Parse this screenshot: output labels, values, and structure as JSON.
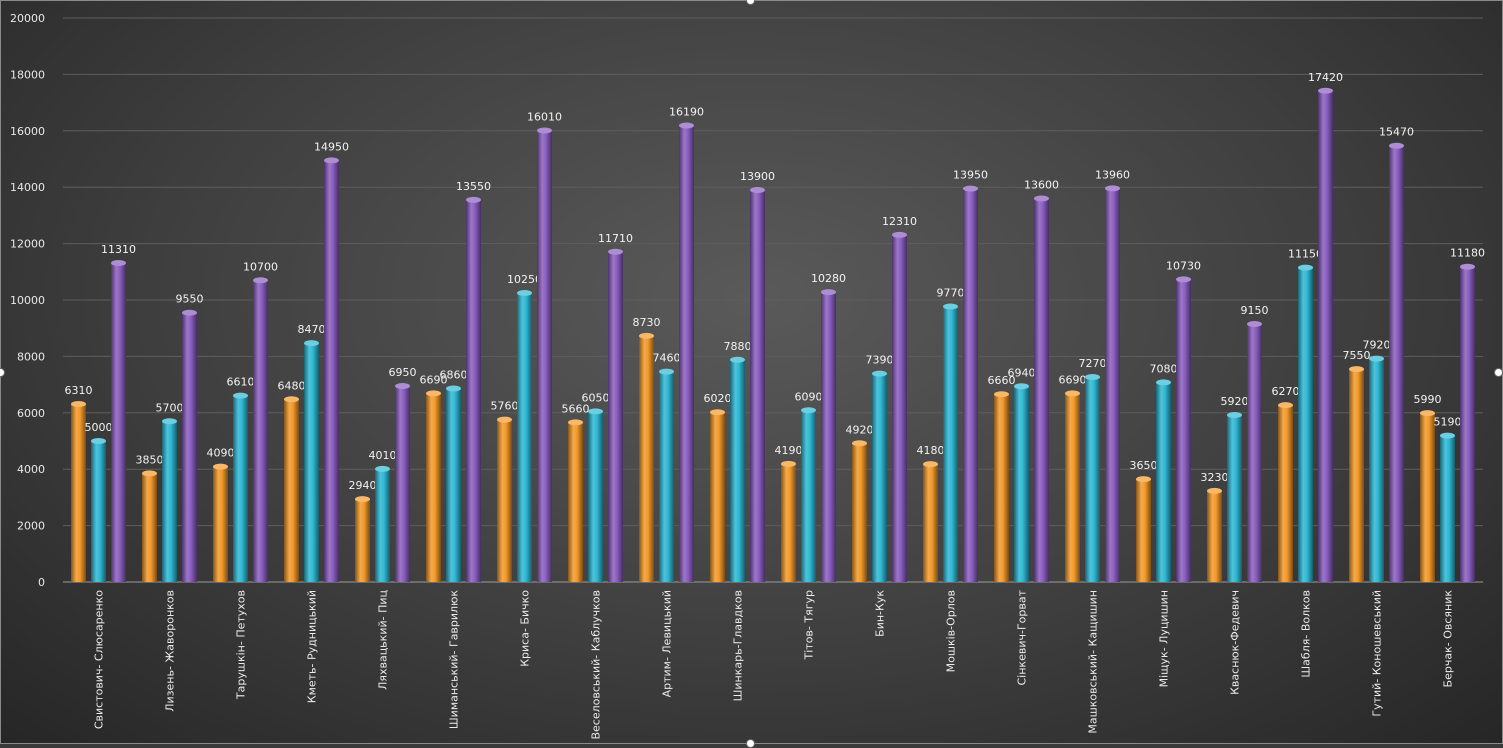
{
  "chart_data": {
    "type": "bar",
    "title": "",
    "xlabel": "",
    "ylabel": "",
    "ylim": [
      0,
      20000
    ],
    "yticks": [
      0,
      2000,
      4000,
      6000,
      8000,
      10000,
      12000,
      14000,
      16000,
      18000,
      20000
    ],
    "grid": true,
    "legend": "none",
    "categories": [
      "Свистович- Слюсаренко",
      "Лизень- Жаворонков",
      "Тарушкін- Петухов",
      "Кметь- Рудницький",
      "Ляхвацький- Пиц",
      "Шиманський- Гаврилюк",
      "Криса- Бичко",
      "Веселовський- Каблучков",
      "Артим- Левицький",
      "Шинкарь-Главдков",
      "Тітов- Тягур",
      "Бин-Кук",
      "Мошків-Орлов",
      "Сінкевич-Горват",
      "Машковський- Кащишин",
      "Міщук- Луцишин",
      "Кваснюк-Федевич",
      "Шабля- Волков",
      "Гутий- Коношевський",
      "Берчак- Овсяник"
    ],
    "series": [
      {
        "color": "#f39a2a",
        "values": [
          6310,
          3850,
          4090,
          6480,
          2940,
          6690,
          5760,
          5660,
          8730,
          6020,
          4190,
          4920,
          4180,
          6660,
          6690,
          3650,
          3230,
          6270,
          7550,
          5990
        ]
      },
      {
        "color": "#2fb8d4",
        "values": [
          5000,
          5700,
          6610,
          8470,
          4010,
          6860,
          10250,
          6050,
          7460,
          7880,
          6090,
          7390,
          9770,
          6940,
          7270,
          7080,
          5920,
          11150,
          7920,
          5190
        ]
      },
      {
        "color": "#8a5ec0",
        "values": [
          11310,
          9550,
          10700,
          14950,
          6950,
          13550,
          16010,
          11710,
          16190,
          13900,
          10280,
          12310,
          13950,
          13600,
          13960,
          10730,
          9150,
          17420,
          15470,
          11180
        ]
      }
    ]
  }
}
